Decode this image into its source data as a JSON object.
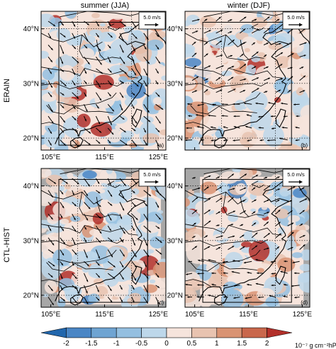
{
  "columns": [
    "summer (JJA)",
    "winter (DJF)"
  ],
  "rows": [
    "ERAIN",
    "CTL-HIST"
  ],
  "panels": [
    {
      "tag": "(a)",
      "ref_vector": "5.0 m/s"
    },
    {
      "tag": "(b)",
      "ref_vector": "5.0 m/s"
    },
    {
      "tag": "(c)",
      "ref_vector": "5.0 m/s"
    },
    {
      "tag": "(d)",
      "ref_vector": "5.0 m/s"
    }
  ],
  "lat_labels": [
    "40°N",
    "30°N",
    "20°N"
  ],
  "lon_labels": [
    "105°E",
    "115°E",
    "125°E"
  ],
  "colorbar": {
    "ticks": [
      "-2",
      "-1.5",
      "-1",
      "-0.5",
      "0",
      "0.5",
      "1",
      "1.5",
      "2"
    ],
    "unit": "10⁻⁷ g cm⁻²hPa⁻¹s",
    "colors": [
      "#2166ac",
      "#4a86c5",
      "#6fa4d2",
      "#94bfe0",
      "#bdd7ea",
      "#f6e4dc",
      "#e8c3b0",
      "#d99373",
      "#c9674c",
      "#b2302a"
    ]
  },
  "map_colors": {
    "land_grey": "#a7a7a7",
    "coast": "#000000"
  }
}
